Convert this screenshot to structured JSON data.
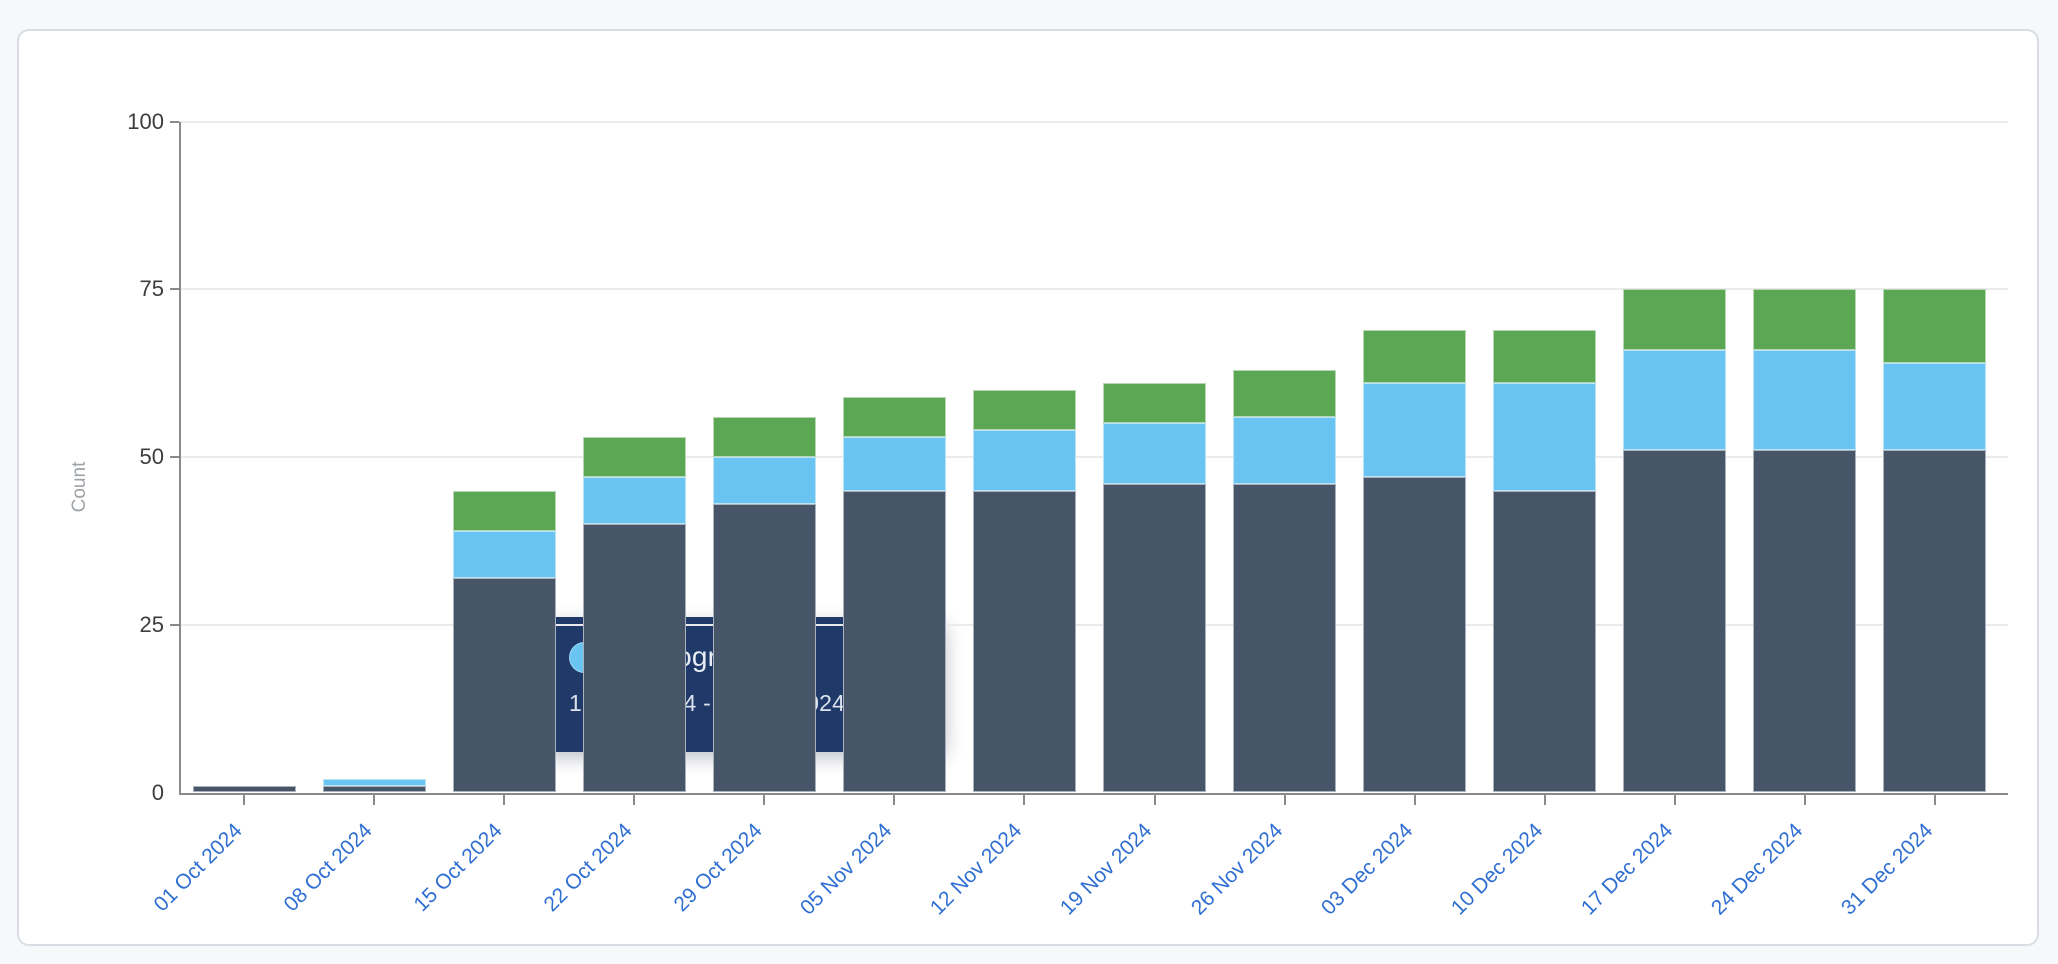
{
  "page": {
    "background": "#f7f8f9"
  },
  "card": {
    "background": "#ffffff",
    "border_color": "#d9dce2"
  },
  "chart_data": {
    "type": "bar",
    "stacked": true,
    "title": "",
    "ylabel": "Count",
    "xlabel": "",
    "ylim": [
      0,
      100
    ],
    "yticks": [
      0,
      25,
      50,
      75,
      100
    ],
    "grid": true,
    "legend_position": "none",
    "x_tick_rotation": -45,
    "categories": [
      "01 Oct 2024",
      "08 Oct 2024",
      "15 Oct 2024",
      "22 Oct 2024",
      "29 Oct 2024",
      "05 Nov 2024",
      "12 Nov 2024",
      "19 Nov 2024",
      "26 Nov 2024",
      "03 Dec 2024",
      "10 Dec 2024",
      "17 Dec 2024",
      "24 Dec 2024",
      "31 Dec 2024"
    ],
    "series": [
      {
        "name": "",
        "color": "#475569",
        "values": [
          1,
          1,
          32,
          40,
          43,
          45,
          45,
          46,
          46,
          47,
          45,
          51,
          51,
          51
        ]
      },
      {
        "name": "In Progress",
        "color": "#6ac4f1",
        "values": [
          0,
          1,
          7,
          7,
          7,
          8,
          9,
          9,
          10,
          14,
          16,
          15,
          15,
          13
        ]
      },
      {
        "name": "",
        "color": "#5ba753",
        "values": [
          0,
          0,
          6,
          6,
          6,
          6,
          6,
          6,
          7,
          8,
          8,
          9,
          9,
          11
        ]
      }
    ]
  },
  "tooltip": {
    "title": "In Progress (7)",
    "date_range": "15 Oct 2024 - 21 Oct 2024",
    "marker_color": "#6ac4f1",
    "background": "#1f3a68"
  },
  "axis": {
    "x_label_color": "#2f6fd2",
    "y_label_color": "#3d3d3d",
    "axis_color": "#8a8a8a",
    "grid_color": "#ebebed",
    "y_title_color": "#9ea3a8"
  }
}
